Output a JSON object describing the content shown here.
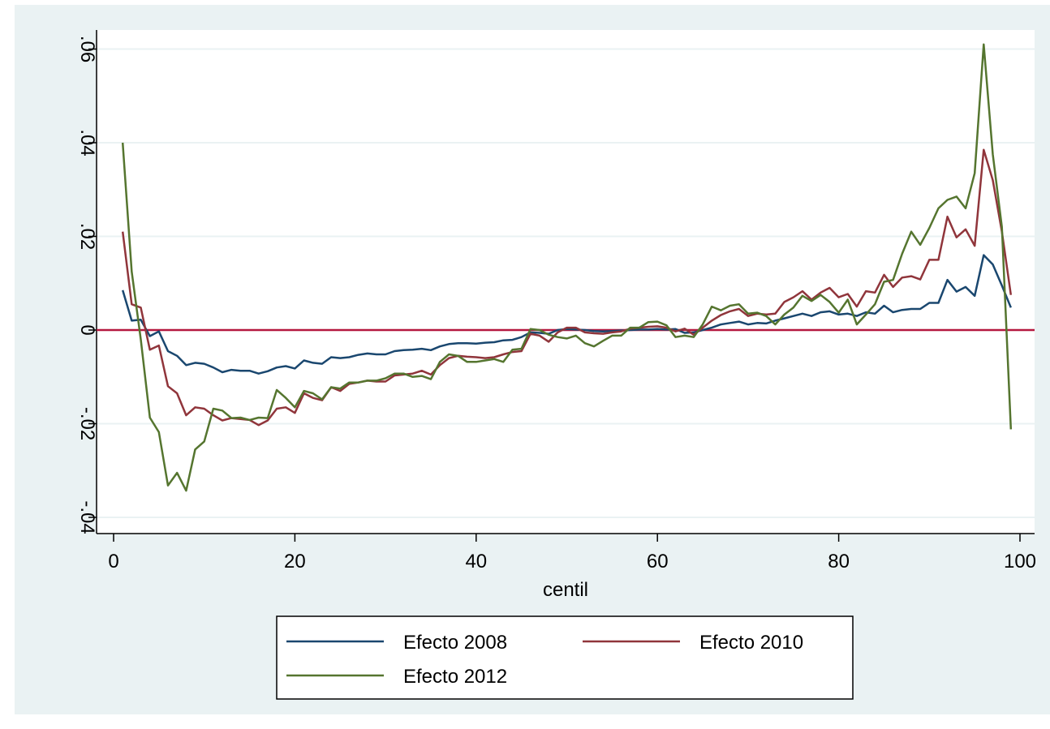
{
  "chart_data": {
    "type": "line",
    "xlabel": "centil",
    "ylabel": "",
    "xlim": [
      0,
      100
    ],
    "ylim": [
      -0.045,
      0.065
    ],
    "x_ticks": [
      0,
      20,
      40,
      60,
      80,
      100
    ],
    "x_tick_labels": [
      "0",
      "20",
      "40",
      "60",
      "80",
      "100"
    ],
    "y_ticks": [
      -0.04,
      -0.02,
      0,
      0.02,
      0.04,
      0.06
    ],
    "y_tick_labels": [
      "-.04",
      "-.02",
      "0",
      ".02",
      ".04",
      ".06"
    ],
    "grid": true,
    "reference_line": {
      "y": 0,
      "color": "#b5183f"
    },
    "legend_position": "bottom",
    "series": [
      {
        "name": "Efecto 2008",
        "color": "#1a476f",
        "x": [
          1,
          2,
          3,
          4,
          5,
          6,
          7,
          8,
          9,
          10,
          11,
          12,
          13,
          14,
          15,
          16,
          17,
          18,
          19,
          20,
          21,
          22,
          23,
          24,
          25,
          26,
          27,
          28,
          29,
          30,
          31,
          32,
          33,
          34,
          35,
          36,
          37,
          38,
          39,
          40,
          41,
          42,
          43,
          44,
          45,
          46,
          47,
          48,
          49,
          50,
          51,
          52,
          53,
          54,
          55,
          56,
          57,
          58,
          59,
          60,
          61,
          62,
          63,
          64,
          65,
          66,
          67,
          68,
          69,
          70,
          71,
          72,
          73,
          74,
          75,
          76,
          77,
          78,
          79,
          80,
          81,
          82,
          83,
          84,
          85,
          86,
          87,
          88,
          89,
          90,
          91,
          92,
          93,
          94,
          95,
          96,
          97,
          98,
          99
        ],
        "values": [
          0.0085,
          0.002,
          0.0022,
          -0.0013,
          -0.0003,
          -0.0045,
          -0.0055,
          -0.0075,
          -0.007,
          -0.0072,
          -0.008,
          -0.009,
          -0.0085,
          -0.0087,
          -0.0087,
          -0.0093,
          -0.0088,
          -0.008,
          -0.0077,
          -0.0082,
          -0.0065,
          -0.007,
          -0.0072,
          -0.0058,
          -0.006,
          -0.0058,
          -0.0053,
          -0.005,
          -0.0052,
          -0.0052,
          -0.0045,
          -0.0043,
          -0.0042,
          -0.004,
          -0.0043,
          -0.0035,
          -0.003,
          -0.0028,
          -0.0028,
          -0.0029,
          -0.0027,
          -0.0026,
          -0.0022,
          -0.0021,
          -0.0015,
          -0.0005,
          -0.0006,
          -0.0008,
          0.0,
          0.0002,
          0.0001,
          0.0,
          -0.0002,
          -0.0003,
          -0.0002,
          -0.0001,
          0.0,
          0.0001,
          0.0001,
          0.0002,
          0.0001,
          0.0002,
          -0.0006,
          -0.0005,
          0.0,
          0.0005,
          0.0012,
          0.0015,
          0.0018,
          0.0012,
          0.0015,
          0.0014,
          0.002,
          0.0025,
          0.003,
          0.0035,
          0.003,
          0.0038,
          0.004,
          0.0033,
          0.0035,
          0.003,
          0.0038,
          0.0035,
          0.0052,
          0.0038,
          0.0043,
          0.0045,
          0.0045,
          0.0058,
          0.0058,
          0.0107,
          0.0082,
          0.0092,
          0.0073,
          0.016,
          0.014,
          0.0095,
          0.0048
        ]
      },
      {
        "name": "Efecto 2010",
        "color": "#90353b",
        "x": [
          1,
          2,
          3,
          4,
          5,
          6,
          7,
          8,
          9,
          10,
          11,
          12,
          13,
          14,
          15,
          16,
          17,
          18,
          19,
          20,
          21,
          22,
          23,
          24,
          25,
          26,
          27,
          28,
          29,
          30,
          31,
          32,
          33,
          34,
          35,
          36,
          37,
          38,
          39,
          40,
          41,
          42,
          43,
          44,
          45,
          46,
          47,
          48,
          49,
          50,
          51,
          52,
          53,
          54,
          55,
          56,
          57,
          58,
          59,
          60,
          61,
          62,
          63,
          64,
          65,
          66,
          67,
          68,
          69,
          70,
          71,
          72,
          73,
          74,
          75,
          76,
          77,
          78,
          79,
          80,
          81,
          82,
          83,
          84,
          85,
          86,
          87,
          88,
          89,
          90,
          91,
          92,
          93,
          94,
          95,
          96,
          97,
          98,
          99
        ],
        "values": [
          0.021,
          0.0055,
          0.0048,
          -0.0042,
          -0.0033,
          -0.012,
          -0.0135,
          -0.0182,
          -0.0165,
          -0.0168,
          -0.0182,
          -0.0193,
          -0.0188,
          -0.019,
          -0.0192,
          -0.0203,
          -0.0193,
          -0.0168,
          -0.0165,
          -0.0177,
          -0.0135,
          -0.0145,
          -0.015,
          -0.0122,
          -0.013,
          -0.0115,
          -0.0112,
          -0.0108,
          -0.011,
          -0.011,
          -0.0097,
          -0.0095,
          -0.0093,
          -0.0087,
          -0.0095,
          -0.0075,
          -0.006,
          -0.0055,
          -0.0057,
          -0.0058,
          -0.006,
          -0.0058,
          -0.0052,
          -0.0047,
          -0.0045,
          -0.0008,
          -0.0012,
          -0.0025,
          -0.0005,
          0.0005,
          0.0005,
          -0.0005,
          -0.0007,
          -0.0008,
          -0.0005,
          -0.0003,
          0.0003,
          0.0005,
          0.0007,
          0.0008,
          0.0005,
          -0.0003,
          0.0003,
          -0.001,
          0.0005,
          0.002,
          0.0032,
          0.004,
          0.0045,
          0.003,
          0.0035,
          0.0033,
          0.0035,
          0.006,
          0.007,
          0.0083,
          0.0065,
          0.008,
          0.009,
          0.007,
          0.0077,
          0.005,
          0.0083,
          0.008,
          0.0118,
          0.0092,
          0.0112,
          0.0115,
          0.0108,
          0.015,
          0.015,
          0.0242,
          0.0198,
          0.0215,
          0.018,
          0.0385,
          0.032,
          0.021,
          0.0075
        ]
      },
      {
        "name": "Efecto 2012",
        "color": "#55752f",
        "x": [
          1,
          2,
          3,
          4,
          5,
          6,
          7,
          8,
          9,
          10,
          11,
          12,
          13,
          14,
          15,
          16,
          17,
          18,
          19,
          20,
          21,
          22,
          23,
          24,
          25,
          26,
          27,
          28,
          29,
          30,
          31,
          32,
          33,
          34,
          35,
          36,
          37,
          38,
          39,
          40,
          41,
          42,
          43,
          44,
          45,
          46,
          47,
          48,
          49,
          50,
          51,
          52,
          53,
          54,
          55,
          56,
          57,
          58,
          59,
          60,
          61,
          62,
          63,
          64,
          65,
          66,
          67,
          68,
          69,
          70,
          71,
          72,
          73,
          74,
          75,
          76,
          77,
          78,
          79,
          80,
          81,
          82,
          83,
          84,
          85,
          86,
          87,
          88,
          89,
          90,
          91,
          92,
          93,
          94,
          95,
          96,
          97,
          98,
          99
        ],
        "values": [
          0.04,
          0.0125,
          -0.002,
          -0.0187,
          -0.0218,
          -0.0332,
          -0.0305,
          -0.0343,
          -0.0255,
          -0.0238,
          -0.0168,
          -0.0172,
          -0.0188,
          -0.0187,
          -0.0192,
          -0.0187,
          -0.0188,
          -0.0128,
          -0.0145,
          -0.0165,
          -0.013,
          -0.0135,
          -0.0148,
          -0.0122,
          -0.0125,
          -0.0112,
          -0.0112,
          -0.0108,
          -0.0108,
          -0.0103,
          -0.0093,
          -0.0093,
          -0.01,
          -0.0098,
          -0.0105,
          -0.0068,
          -0.0052,
          -0.0055,
          -0.0068,
          -0.0068,
          -0.0065,
          -0.0062,
          -0.0068,
          -0.0042,
          -0.004,
          0.0002,
          0.0,
          -0.001,
          -0.0015,
          -0.0018,
          -0.0012,
          -0.0028,
          -0.0035,
          -0.0023,
          -0.0012,
          -0.0012,
          0.0005,
          0.0005,
          0.0017,
          0.0018,
          0.001,
          -0.0015,
          -0.0012,
          -0.0015,
          0.0012,
          0.005,
          0.0042,
          0.0052,
          0.0055,
          0.0035,
          0.0037,
          0.003,
          0.0012,
          0.0033,
          0.0048,
          0.0073,
          0.0062,
          0.0075,
          0.006,
          0.0037,
          0.0065,
          0.0012,
          0.0033,
          0.0055,
          0.0103,
          0.0107,
          0.0163,
          0.021,
          0.0182,
          0.0218,
          0.026,
          0.0278,
          0.0285,
          0.026,
          0.0335,
          0.061,
          0.0375,
          0.022,
          -0.0212
        ]
      }
    ]
  }
}
